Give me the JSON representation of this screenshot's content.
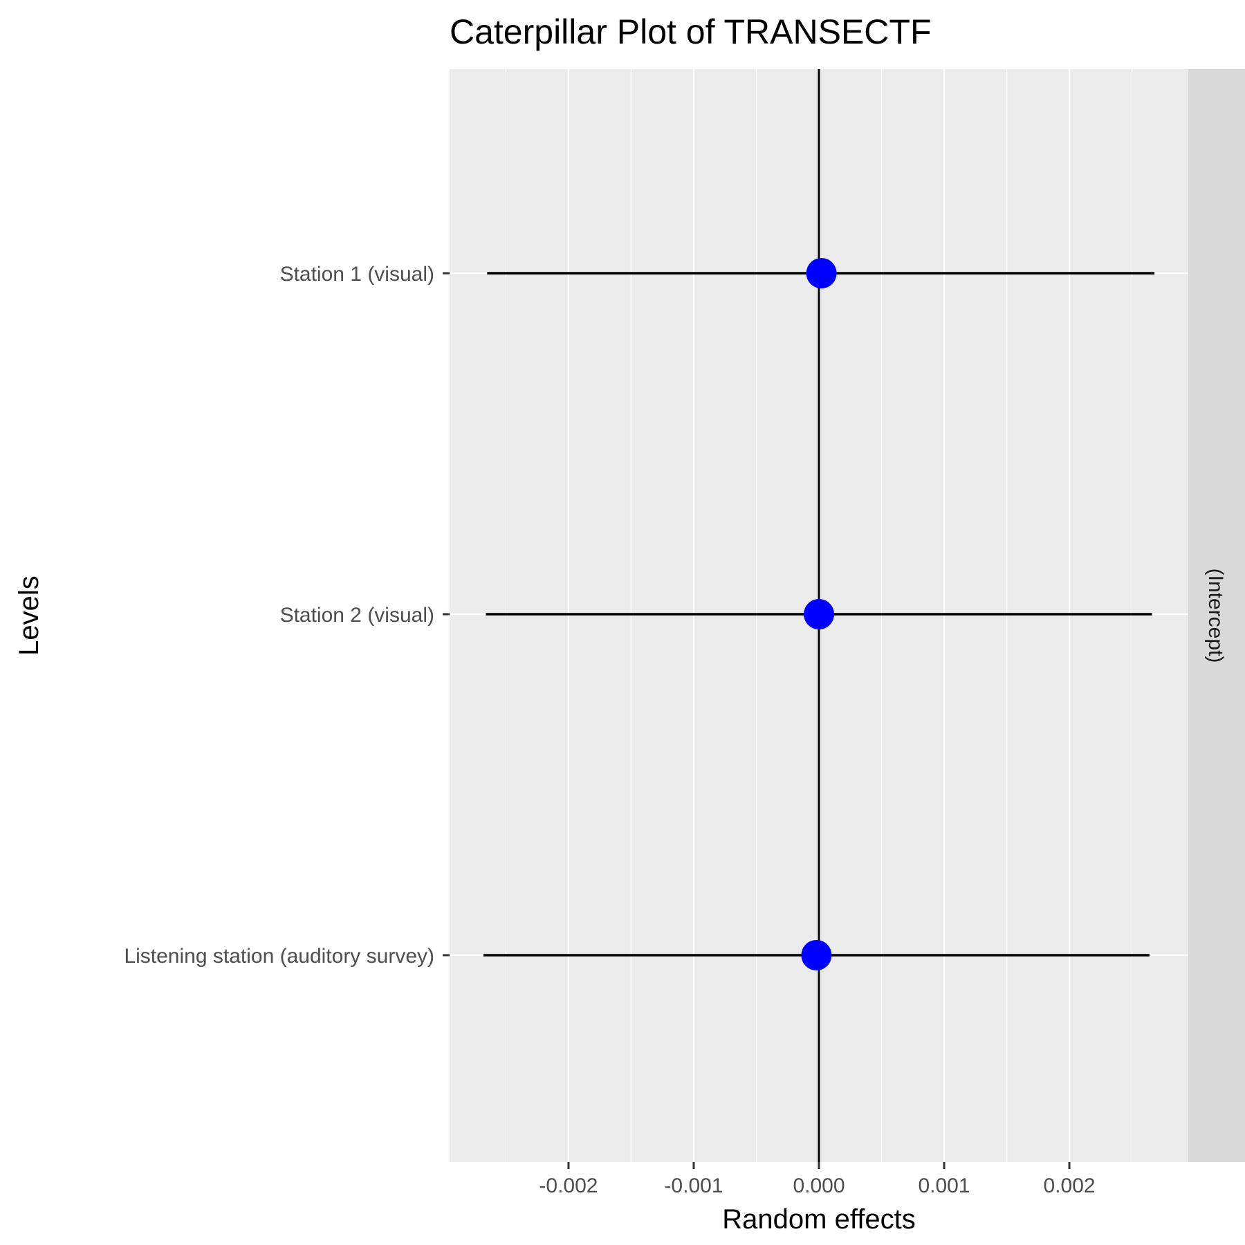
{
  "chart_data": {
    "type": "scatter",
    "title": "Caterpillar Plot of  TRANSECTF",
    "xlabel": "Random effects",
    "ylabel": "Levels",
    "facet_label": "(Intercept)",
    "xlim": [
      -0.00295,
      0.00295
    ],
    "x_ticks": [
      {
        "value": -0.002,
        "label": "-0.002"
      },
      {
        "value": -0.001,
        "label": "-0.001"
      },
      {
        "value": 0.0,
        "label": "0.000"
      },
      {
        "value": 0.001,
        "label": "0.001"
      },
      {
        "value": 0.002,
        "label": "0.002"
      }
    ],
    "x_minor_grid": [
      -0.0025,
      -0.0015,
      -0.0005,
      0.0005,
      0.0015,
      0.0025
    ],
    "reference_line": 0,
    "grid": true,
    "legend": "none",
    "point_color": "#0000ff",
    "levels": [
      {
        "label": "Station 1 (visual)",
        "estimate": 2e-05,
        "lower": -0.00265,
        "upper": 0.00268
      },
      {
        "label": "Station 2 (visual)",
        "estimate": 0.0,
        "lower": -0.00266,
        "upper": 0.00266
      },
      {
        "label": "Listening station (auditory survey)",
        "estimate": -2e-05,
        "lower": -0.00268,
        "upper": 0.00264
      }
    ]
  }
}
